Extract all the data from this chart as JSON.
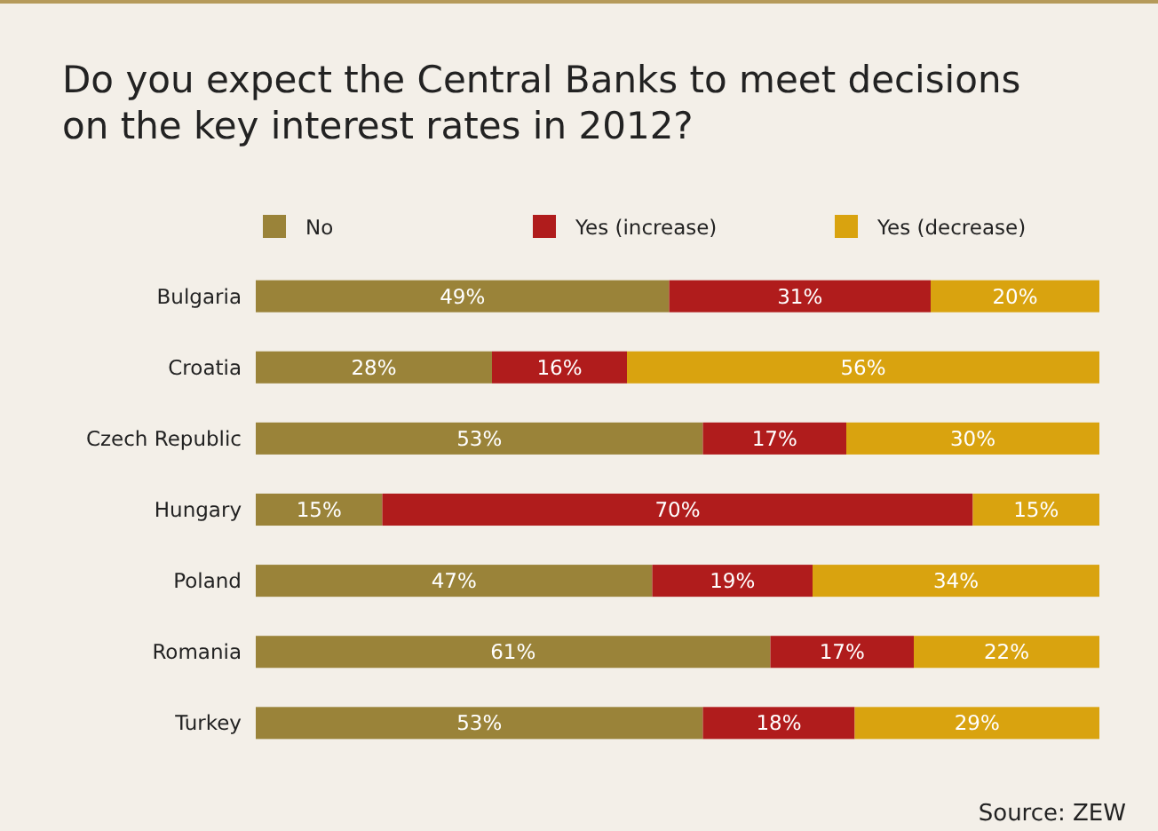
{
  "chart_data": {
    "type": "bar",
    "orientation": "horizontal",
    "stacked": true,
    "title": "Do you expect the Central Banks to meet decisions on the key interest rates in 2012?",
    "categories": [
      "Bulgaria",
      "Croatia",
      "Czech Republic",
      "Hungary",
      "Poland",
      "Romania",
      "Turkey"
    ],
    "series": [
      {
        "name": "No",
        "color": "#9a8339",
        "values": [
          49,
          28,
          53,
          15,
          47,
          61,
          53
        ],
        "value_labels": [
          "49%",
          "28%",
          "53%",
          "15%",
          "47%",
          "61%",
          "53%"
        ]
      },
      {
        "name": "Yes (increase)",
        "color": "#b01c1c",
        "values": [
          31,
          16,
          17,
          70,
          19,
          17,
          18
        ],
        "value_labels": [
          "31%",
          "16%",
          "17%",
          "70%",
          "19%",
          "17%",
          "18%"
        ]
      },
      {
        "name": "Yes (decrease)",
        "color": "#d9a30f",
        "values": [
          20,
          56,
          30,
          15,
          34,
          22,
          29
        ],
        "value_labels": [
          "20%",
          "56%",
          "30%",
          "15%",
          "34%",
          "22%",
          "29%"
        ]
      }
    ],
    "legend": "top",
    "annotations": [
      "Source: ZEW"
    ]
  }
}
